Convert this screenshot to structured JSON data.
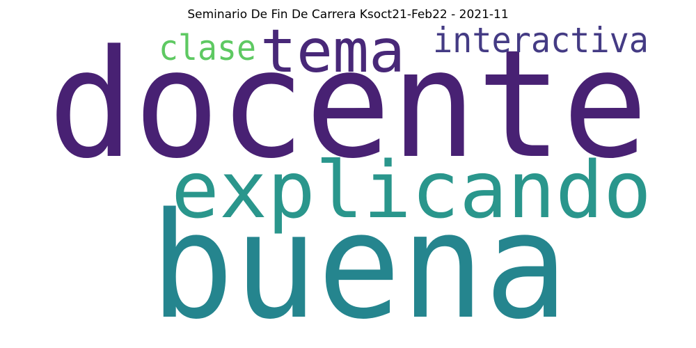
{
  "title": "Seminario De Fin De Carrera Ksoct21-Feb22 - 2021-11",
  "words": [
    {
      "text": "docente",
      "color": "#482173"
    },
    {
      "text": "buena",
      "color": "#25858e"
    },
    {
      "text": "explicando",
      "color": "#2a968c"
    },
    {
      "text": "tema",
      "color": "#482878"
    },
    {
      "text": "interactiva",
      "color": "#443b84"
    },
    {
      "text": "clase",
      "color": "#5ec962"
    }
  ]
}
